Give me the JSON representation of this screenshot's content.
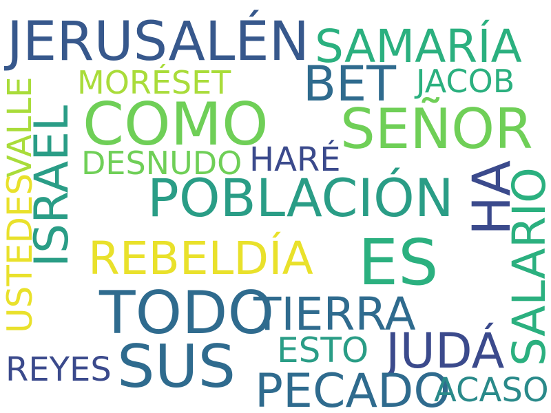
{
  "palette": {
    "background": "#ffffff",
    "dark_navy": "#3b4a8c",
    "steel_blue": "#2f6b8e",
    "teal": "#2a8a8a",
    "green_teal": "#2bb07f",
    "green": "#6fcf57",
    "lime": "#a9dc3a",
    "yellow": "#e9e12b"
  },
  "words": {
    "jerusalen": "JERUSALÉN",
    "samaria": "SAMARÍA",
    "moreset": "MORÉSET",
    "bet": "BET",
    "jacob": "JACOB",
    "israel": "ISRAEL",
    "valle": "VALLE",
    "como": "COMO",
    "senor": "SEÑOR",
    "desnudo": "DESNUDO",
    "hare": "HARÉ",
    "poblacion": "POBLACIÓN",
    "ha": "HA",
    "salario": "SALARIO",
    "ustedes": "USTEDES",
    "rebeldia": "REBELDÍA",
    "es": "ES",
    "todo": "TODO",
    "tierra": "TIERRA",
    "sus": "SUS",
    "esto": "ESTO",
    "juda": "JUDÁ",
    "reyes": "REYES",
    "pecado": "PECADO",
    "acaso": "ACASO"
  }
}
